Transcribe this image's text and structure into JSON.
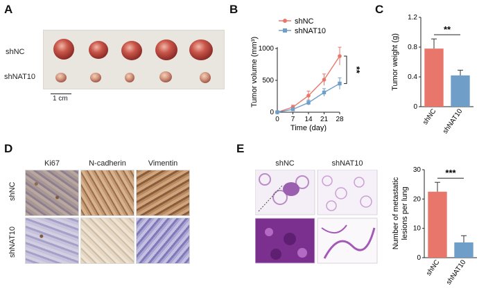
{
  "panels": {
    "A": {
      "letter": "A",
      "rows": [
        "shNC",
        "shNAT10"
      ],
      "scale_bar": "1 cm"
    },
    "B": {
      "letter": "B",
      "significance": "**"
    },
    "C": {
      "letter": "C",
      "significance": "**"
    },
    "D": {
      "letter": "D",
      "columns": [
        "Ki67",
        "N-cadherin",
        "Vimentin"
      ],
      "rows": [
        "shNC",
        "shNAT10"
      ]
    },
    "E": {
      "letter": "E",
      "columns": [
        "shNC",
        "shNAT10"
      ],
      "significance": "***"
    }
  },
  "chart_data": [
    {
      "id": "B",
      "type": "line",
      "xlabel": "Time (day)",
      "ylabel": "Tumor volume (mm³)",
      "x": [
        0,
        7,
        14,
        21,
        28
      ],
      "xlim": [
        0,
        28
      ],
      "ylim": [
        0,
        1000
      ],
      "yticks": [
        0,
        500,
        1000
      ],
      "series": [
        {
          "name": "shNC",
          "color": "#e8766a",
          "values": [
            0,
            80,
            260,
            510,
            880
          ],
          "errors": [
            0,
            30,
            70,
            90,
            140
          ]
        },
        {
          "name": "shNAT10",
          "color": "#6f9fc9",
          "values": [
            0,
            45,
            150,
            310,
            450
          ],
          "errors": [
            0,
            20,
            40,
            60,
            90
          ]
        }
      ],
      "legend": "top-left",
      "grid": false
    },
    {
      "id": "C",
      "type": "bar",
      "ylabel": "Tumor weight (g)",
      "categories": [
        "shNC",
        "shNAT10"
      ],
      "values": [
        0.78,
        0.42
      ],
      "errors": [
        0.13,
        0.07
      ],
      "colors": [
        "#e8766a",
        "#6f9fc9"
      ],
      "ylim": [
        0,
        1.2
      ],
      "yticks": [
        0.0,
        0.4,
        0.8,
        1.2
      ],
      "grid": false
    },
    {
      "id": "E",
      "type": "bar",
      "ylabel": "Number of metastatic lesions per lung",
      "categories": [
        "shNC",
        "shNAT10"
      ],
      "values": [
        22.5,
        5.2
      ],
      "errors": [
        3.2,
        2.3
      ],
      "colors": [
        "#e8766a",
        "#6f9fc9"
      ],
      "ylim": [
        0,
        30
      ],
      "yticks": [
        0,
        10,
        20,
        30
      ],
      "grid": false
    }
  ]
}
